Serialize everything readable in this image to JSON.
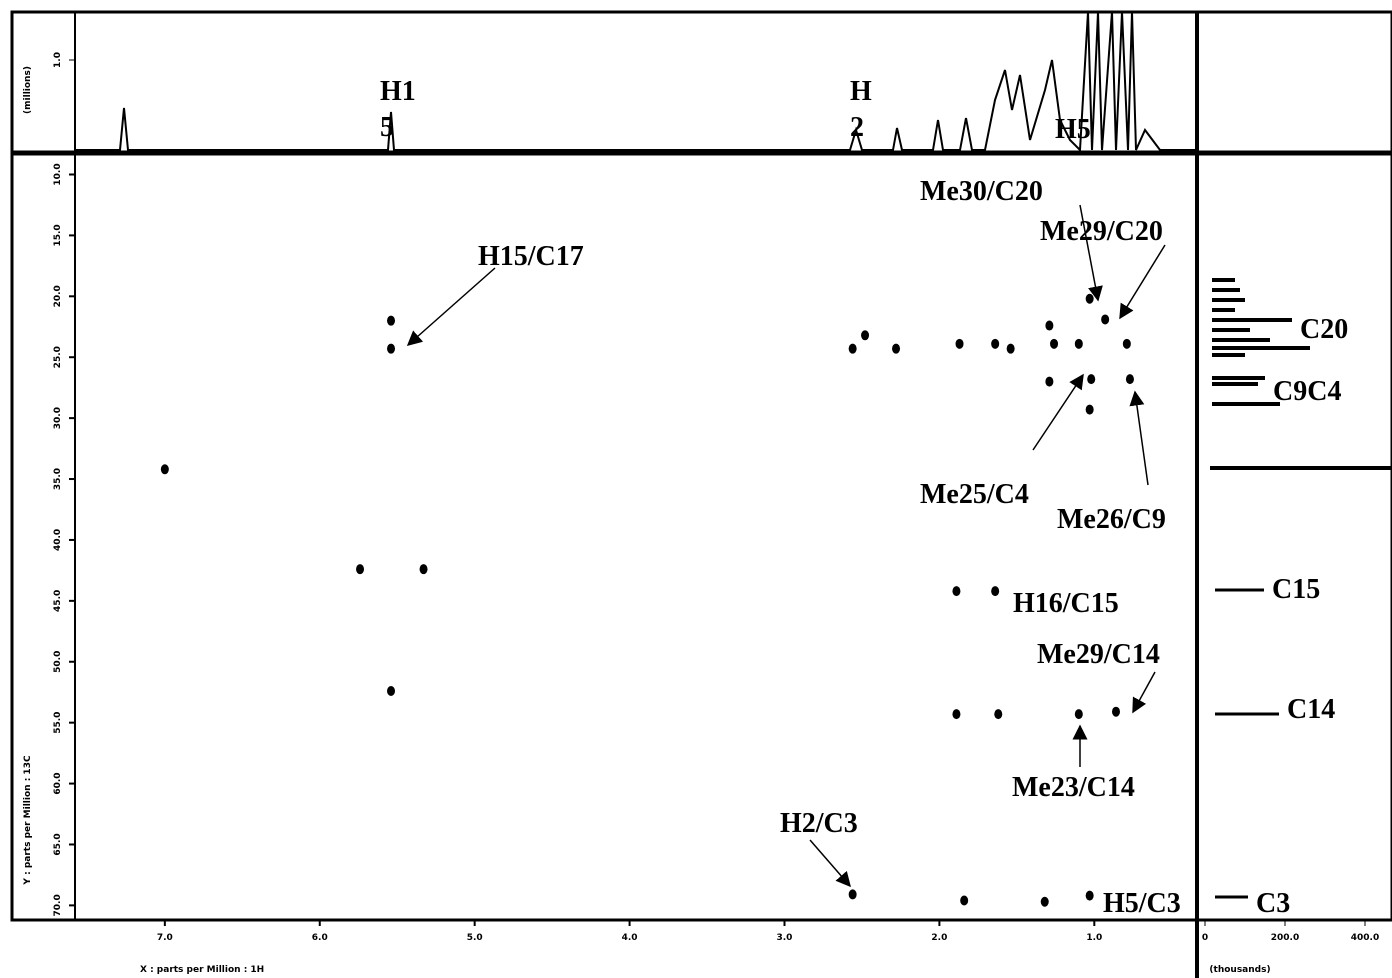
{
  "chart_data": {
    "type": "scatter",
    "x_label": "X : parts per Million : 1H",
    "y_label": "Y : parts per Million : 13C",
    "top_projection_label": "(millions)",
    "top_projection_ticks": [
      {
        "value": 1,
        "label": "1.0"
      }
    ],
    "right_projection_label": "(thousands)",
    "right_projection_ticks": [
      0,
      {
        "value": 200,
        "label": "200.0"
      },
      {
        "value": 400,
        "label": "400.0"
      }
    ],
    "xlim": [
      7.58,
      0.35
    ],
    "ylim": [
      8.4,
      71.2
    ],
    "xticks": [
      {
        "value": 7,
        "label": "7.0"
      },
      {
        "value": 6,
        "label": "6.0"
      },
      {
        "value": 5,
        "label": "5.0"
      },
      {
        "value": 4,
        "label": "4.0"
      },
      {
        "value": 3,
        "label": "3.0"
      },
      {
        "value": 2,
        "label": "2.0"
      },
      {
        "value": 1,
        "label": "1.0"
      }
    ],
    "yticks": [
      {
        "value": 10,
        "label": "10.0"
      },
      {
        "value": 15,
        "label": "15.0"
      },
      {
        "value": 20,
        "label": "20.0"
      },
      {
        "value": 25,
        "label": "25.0"
      },
      {
        "value": 30,
        "label": "30.0"
      },
      {
        "value": 35,
        "label": "35.0"
      },
      {
        "value": 40,
        "label": "40.0"
      },
      {
        "value": 45,
        "label": "45.0"
      },
      {
        "value": 50,
        "label": "50.0"
      },
      {
        "value": 55,
        "label": "55.0"
      },
      {
        "value": 60,
        "label": "60.0"
      },
      {
        "value": 65,
        "label": "65.0"
      },
      {
        "value": 70,
        "label": "70.0"
      }
    ],
    "series": [
      {
        "color": "#000000",
        "x": [
          5.54,
          5.54,
          7.0,
          5.74,
          5.33,
          5.54,
          2.56,
          2.48,
          2.28,
          1.87,
          1.64,
          1.54,
          1.29,
          1.26,
          1.1,
          1.03,
          0.93,
          0.79,
          1.02,
          1.29,
          0.77,
          1.03,
          1.89,
          1.64,
          1.89,
          1.62,
          1.1,
          0.86,
          2.56,
          1.84,
          1.32,
          1.03
        ],
        "values": [
          22.0,
          24.3,
          34.2,
          42.4,
          42.4,
          52.4,
          24.3,
          23.2,
          24.3,
          23.9,
          23.9,
          24.3,
          22.4,
          23.9,
          23.9,
          20.2,
          21.9,
          23.9,
          26.8,
          27.0,
          26.8,
          29.3,
          44.2,
          44.2,
          54.3,
          54.3,
          54.3,
          54.1,
          69.1,
          69.6,
          69.7,
          69.2
        ]
      }
    ],
    "top_labels": [
      [
        "H1",
        "5"
      ],
      [
        "H",
        "2"
      ],
      [
        "H5"
      ]
    ],
    "right_labels": [
      "C20",
      "C9C4",
      "C15",
      "C14",
      "C3"
    ],
    "annotations": [
      "H15/C17",
      "Me30/C20",
      "Me29/C20",
      "Me25/C4",
      "Me26/C9",
      "H16/C15",
      "Me29/C14",
      "Me23/C14",
      "H2/C3",
      "H5/C3"
    ]
  }
}
